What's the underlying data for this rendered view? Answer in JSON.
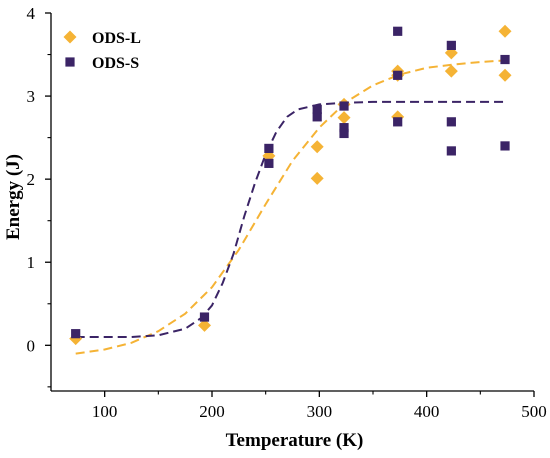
{
  "chart_data": {
    "type": "scatter",
    "xlabel": "Temperature (K)",
    "ylabel": "Energy (J)",
    "xlim": [
      50,
      500
    ],
    "ylim": [
      -0.55,
      4
    ],
    "xticks": [
      100,
      200,
      300,
      400,
      500
    ],
    "yticks": [
      0,
      1,
      2,
      3,
      4
    ],
    "grid": false,
    "legend_position": "top-left",
    "series": [
      {
        "name": "ODS-L",
        "marker": "diamond",
        "color": "#F5B335",
        "points": [
          [
            73,
            0.08
          ],
          [
            193,
            0.24
          ],
          [
            253,
            2.28
          ],
          [
            298,
            2.39
          ],
          [
            298,
            2.01
          ],
          [
            323,
            2.74
          ],
          [
            323,
            2.9
          ],
          [
            373,
            3.3
          ],
          [
            373,
            3.25
          ],
          [
            373,
            2.75
          ],
          [
            423,
            3.52
          ],
          [
            423,
            3.3
          ],
          [
            473,
            3.78
          ],
          [
            473,
            3.25
          ]
        ],
        "fit_curve": [
          [
            73,
            -0.1
          ],
          [
            100,
            -0.05
          ],
          [
            125,
            0.03
          ],
          [
            150,
            0.17
          ],
          [
            175,
            0.38
          ],
          [
            200,
            0.7
          ],
          [
            225,
            1.15
          ],
          [
            250,
            1.7
          ],
          [
            275,
            2.22
          ],
          [
            300,
            2.62
          ],
          [
            325,
            2.93
          ],
          [
            350,
            3.13
          ],
          [
            375,
            3.26
          ],
          [
            400,
            3.34
          ],
          [
            425,
            3.38
          ],
          [
            450,
            3.41
          ],
          [
            473,
            3.43
          ]
        ]
      },
      {
        "name": "ODS-S",
        "marker": "square",
        "color": "#3B2466",
        "points": [
          [
            73,
            0.14
          ],
          [
            193,
            0.34
          ],
          [
            253,
            2.37
          ],
          [
            253,
            2.19
          ],
          [
            298,
            2.84
          ],
          [
            298,
            2.75
          ],
          [
            323,
            2.88
          ],
          [
            323,
            2.62
          ],
          [
            323,
            2.55
          ],
          [
            373,
            3.78
          ],
          [
            373,
            3.25
          ],
          [
            373,
            2.69
          ],
          [
            423,
            3.61
          ],
          [
            423,
            2.69
          ],
          [
            423,
            2.34
          ],
          [
            473,
            3.44
          ],
          [
            473,
            2.4
          ]
        ],
        "fit_curve": [
          [
            73,
            0.1
          ],
          [
            100,
            0.1
          ],
          [
            125,
            0.1
          ],
          [
            150,
            0.12
          ],
          [
            175,
            0.2
          ],
          [
            190,
            0.33
          ],
          [
            200,
            0.48
          ],
          [
            210,
            0.75
          ],
          [
            220,
            1.1
          ],
          [
            230,
            1.55
          ],
          [
            240,
            1.95
          ],
          [
            250,
            2.3
          ],
          [
            260,
            2.57
          ],
          [
            270,
            2.75
          ],
          [
            280,
            2.84
          ],
          [
            300,
            2.9
          ],
          [
            325,
            2.92
          ],
          [
            350,
            2.93
          ],
          [
            400,
            2.93
          ],
          [
            473,
            2.93
          ]
        ]
      }
    ]
  }
}
